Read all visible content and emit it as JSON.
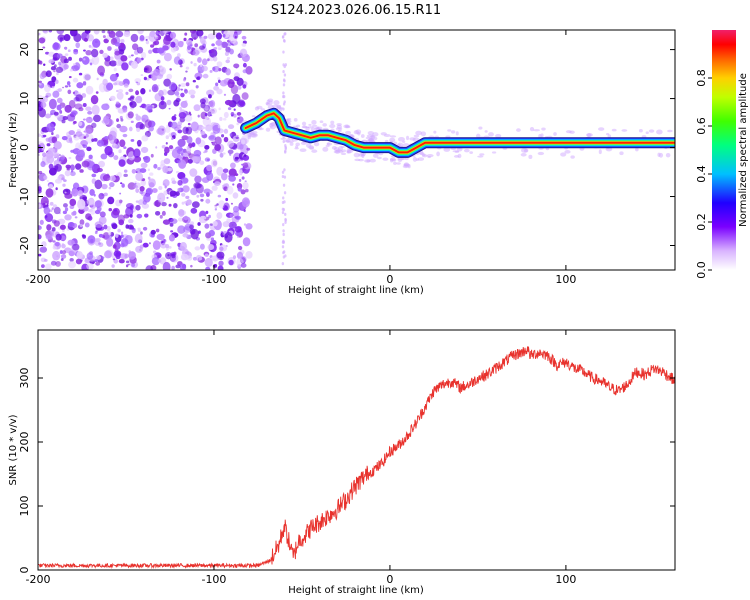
{
  "title": "S124.2023.026.06.15.R11",
  "chart_data": [
    {
      "type": "heatmap",
      "xlabel": "Height of straight line (km)",
      "ylabel": "Frequency (Hz)",
      "xlim": [
        -200,
        162
      ],
      "ylim": [
        -25,
        24
      ],
      "xticks": [
        -200,
        -100,
        0,
        100
      ],
      "yticks": [
        -20,
        -10,
        0,
        10,
        20
      ],
      "colorbar": {
        "label": "Normalized spectral amplitude",
        "range": [
          0,
          1
        ],
        "ticks": [
          "0.0",
          "0.2",
          "0.4",
          "0.6",
          "0.8"
        ]
      },
      "noise_region_x": [
        -200,
        -80
      ],
      "ridge": {
        "x": [
          -82,
          -76,
          -70,
          -66,
          -63,
          -60,
          -55,
          -50,
          -45,
          -40,
          -35,
          -30,
          -25,
          -20,
          -15,
          -10,
          -5,
          0,
          5,
          10,
          15,
          20,
          25,
          30,
          40,
          60,
          80,
          100,
          120,
          140,
          162
        ],
        "freq": [
          4,
          5,
          6.5,
          7,
          6,
          3.5,
          3,
          2.5,
          2,
          2.5,
          2.5,
          2,
          1.5,
          0.5,
          0,
          0,
          0,
          0,
          -1,
          -1,
          0,
          1,
          1,
          1,
          1,
          1,
          1,
          1,
          1,
          1,
          1
        ]
      }
    },
    {
      "type": "line",
      "xlabel": "Height of straight line (km)",
      "ylabel": "SNR (10 * v/v)",
      "xlim": [
        -200,
        162
      ],
      "ylim": [
        0,
        375
      ],
      "xticks": [
        -200,
        -100,
        0,
        100
      ],
      "yticks": [
        0,
        100,
        200,
        300
      ],
      "series": [
        {
          "color": "#e8322d",
          "x": [
            -200,
            -150,
            -100,
            -75,
            -68,
            -63,
            -60,
            -57,
            -55,
            -52,
            -48,
            -45,
            -40,
            -35,
            -30,
            -25,
            -20,
            -15,
            -10,
            -5,
            0,
            5,
            10,
            15,
            20,
            25,
            30,
            35,
            40,
            45,
            50,
            55,
            60,
            65,
            70,
            75,
            78,
            80,
            85,
            90,
            95,
            100,
            105,
            110,
            115,
            120,
            125,
            130,
            135,
            140,
            145,
            150,
            155,
            160,
            162
          ],
          "y": [
            7,
            7,
            7,
            7,
            15,
            40,
            70,
            40,
            20,
            45,
            55,
            65,
            75,
            85,
            95,
            110,
            130,
            145,
            155,
            165,
            185,
            195,
            210,
            230,
            255,
            280,
            290,
            295,
            285,
            290,
            300,
            305,
            315,
            325,
            335,
            340,
            345,
            335,
            340,
            335,
            320,
            325,
            315,
            310,
            300,
            295,
            285,
            280,
            290,
            310,
            305,
            315,
            310,
            300,
            295
          ]
        }
      ]
    }
  ]
}
